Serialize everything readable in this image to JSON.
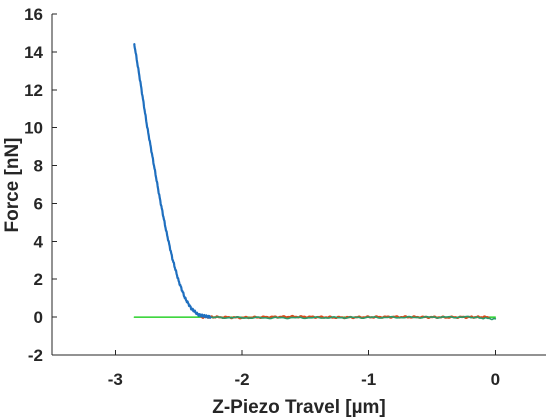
{
  "chart_data": {
    "type": "line",
    "title": "",
    "xlabel": "Z-Piezo Travel [µm]",
    "ylabel": "Force [nN]",
    "xlim": [
      -3.5,
      0.4
    ],
    "ylim": [
      -2,
      16
    ],
    "xticks": [
      -3,
      -2,
      -1,
      0
    ],
    "yticks": [
      -2,
      0,
      2,
      4,
      6,
      8,
      10,
      12,
      14,
      16
    ],
    "grid": false,
    "legend": "none",
    "box": false,
    "series": [
      {
        "color": "#00c800",
        "width": 1.2,
        "x": [
          -2.85,
          0.0
        ],
        "y": [
          0.0,
          0.0
        ]
      },
      {
        "color": "#d94a1a",
        "width": 2.2,
        "noise": 0.04,
        "x": [
          -2.32,
          -2.2,
          -2.0,
          -1.8,
          -1.6,
          -1.4,
          -1.2,
          -1.0,
          -0.8,
          -0.6,
          -0.4,
          -0.2,
          -0.05
        ],
        "y": [
          0.0,
          0.0,
          -0.03,
          0.0,
          0.02,
          0.0,
          -0.02,
          0.0,
          0.01,
          0.0,
          -0.01,
          0.0,
          0.0
        ]
      },
      {
        "color": "#2a9a6a",
        "width": 1.6,
        "noise": 0.04,
        "x": [
          -2.25,
          -1.8,
          -1.4,
          -1.0,
          -0.6,
          -0.2,
          0.0
        ],
        "y": [
          -0.02,
          -0.04,
          -0.03,
          -0.02,
          -0.01,
          0.0,
          -0.1
        ]
      },
      {
        "color": "#1f6fbf",
        "width": 2.2,
        "noise": 0.06,
        "x": [
          -2.85,
          -2.8,
          -2.75,
          -2.7,
          -2.65,
          -2.6,
          -2.55,
          -2.5,
          -2.45,
          -2.4,
          -2.35,
          -2.3,
          -2.25
        ],
        "y": [
          14.4,
          12.3,
          10.1,
          8.2,
          6.3,
          4.6,
          3.1,
          1.9,
          1.0,
          0.45,
          0.15,
          0.05,
          0.02
        ]
      }
    ]
  }
}
